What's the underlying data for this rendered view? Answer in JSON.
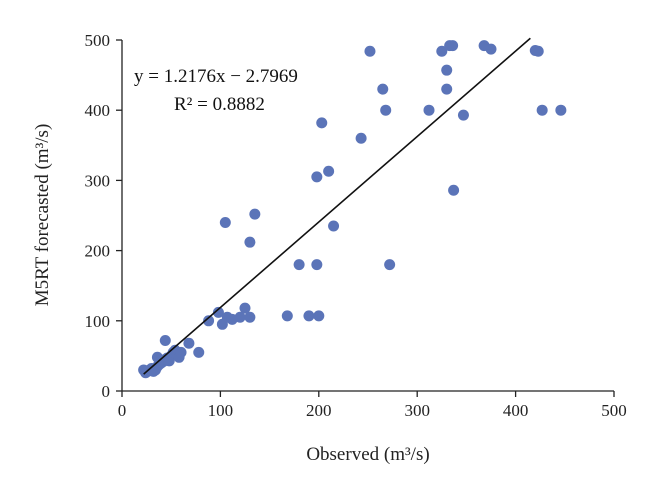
{
  "chart_data": {
    "type": "scatter",
    "title": "",
    "xlabel": "Observed (m³/s)",
    "ylabel": "M5RT forecasted (m³/s)",
    "xlim": [
      0,
      500
    ],
    "ylim": [
      0,
      500
    ],
    "x_ticks": [
      "0",
      "100",
      "200",
      "300",
      "400",
      "500"
    ],
    "y_ticks": [
      "0",
      "100",
      "200",
      "300",
      "400",
      "500"
    ],
    "grid": false,
    "legend": "none",
    "marker_color": "#5b74b8",
    "line_color": "#111111",
    "fit": {
      "slope": 1.2176,
      "intercept": -2.7969,
      "x_range": [
        22,
        415
      ],
      "equation_label": "y = 1.2176x − 2.7969",
      "r2_label": "R² = 0.8882"
    },
    "series": [
      {
        "x": [
          22,
          24,
          26,
          28,
          30,
          32,
          34,
          36,
          38,
          40,
          42,
          44,
          46,
          48,
          50,
          52,
          54,
          56,
          58,
          60,
          36,
          44,
          68,
          78,
          88,
          98,
          102,
          107,
          112,
          120,
          125,
          130,
          105,
          130,
          135,
          168,
          180,
          190,
          198,
          198,
          200,
          203,
          210,
          215,
          243,
          252,
          265,
          268,
          272,
          312,
          325,
          330,
          330,
          333,
          336,
          337,
          347,
          368,
          375,
          420,
          423,
          427,
          446
        ],
        "y": [
          30,
          26,
          28,
          30,
          32,
          28,
          30,
          35,
          38,
          40,
          42,
          45,
          47,
          43,
          50,
          55,
          58,
          52,
          48,
          55,
          48,
          72,
          68,
          55,
          100,
          112,
          95,
          105,
          102,
          105,
          118,
          105,
          240,
          212,
          252,
          107,
          180,
          107,
          180,
          305,
          107,
          382,
          313,
          235,
          360,
          484,
          430,
          400,
          180,
          400,
          484,
          457,
          430,
          492,
          492,
          286,
          393,
          492,
          487,
          485,
          484,
          400,
          400
        ]
      }
    ]
  }
}
